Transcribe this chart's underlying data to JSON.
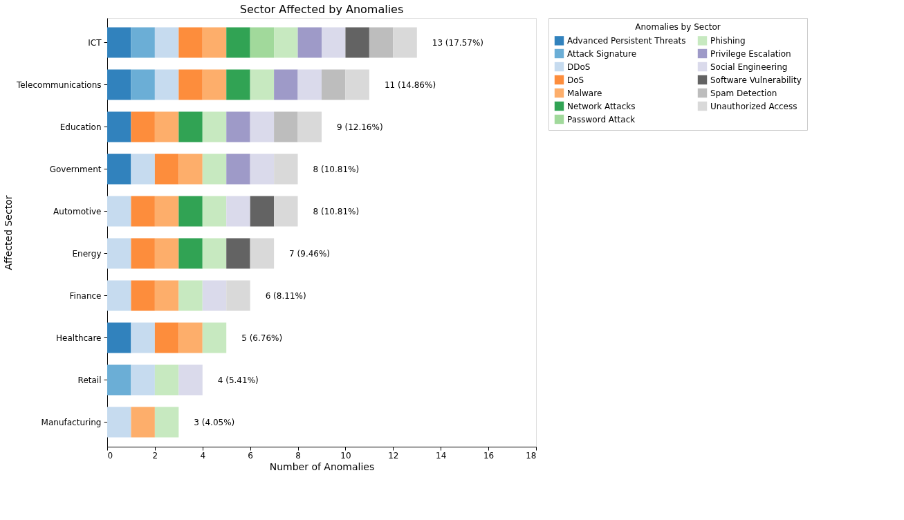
{
  "chart_data": {
    "type": "bar",
    "orientation": "horizontal",
    "stacked": true,
    "title": "Sector Affected by Anomalies",
    "xlabel": "Number of Anomalies",
    "ylabel": "Affected Sector",
    "legend_title": "Anomalies by Sector",
    "legend": "top right",
    "grid": false,
    "categories": [
      "ICT",
      "Telecommunications",
      "Education",
      "Government",
      "Automotive",
      "Energy",
      "Finance",
      "Healthcare",
      "Retail",
      "Manufacturing"
    ],
    "xlim": [
      0,
      18
    ],
    "xticks": [
      0,
      2,
      4,
      6,
      8,
      10,
      12,
      14,
      16,
      18
    ],
    "series": [
      {
        "name": "Advanced Persistent Threats",
        "color": "#3182bd",
        "values": [
          1,
          1,
          1,
          1,
          0,
          0,
          0,
          1,
          0,
          0
        ]
      },
      {
        "name": "Attack Signature",
        "color": "#6baed6",
        "values": [
          1,
          1,
          0,
          0,
          0,
          0,
          0,
          0,
          1,
          0
        ]
      },
      {
        "name": "DDoS",
        "color": "#c6dbef",
        "values": [
          1,
          1,
          0,
          1,
          1,
          1,
          1,
          1,
          1,
          1
        ]
      },
      {
        "name": "DoS",
        "color": "#fd8d3c",
        "values": [
          1,
          1,
          1,
          1,
          1,
          1,
          1,
          1,
          0,
          0
        ]
      },
      {
        "name": "Malware",
        "color": "#fdae6b",
        "values": [
          1,
          1,
          1,
          1,
          1,
          1,
          1,
          1,
          0,
          1
        ]
      },
      {
        "name": "Network Attacks",
        "color": "#31a354",
        "values": [
          1,
          1,
          1,
          0,
          1,
          1,
          0,
          0,
          0,
          0
        ]
      },
      {
        "name": "Password Attack",
        "color": "#a1d99b",
        "values": [
          1,
          0,
          0,
          0,
          0,
          0,
          0,
          0,
          0,
          0
        ]
      },
      {
        "name": "Phishing",
        "color": "#c7e9c0",
        "values": [
          1,
          1,
          1,
          1,
          1,
          1,
          1,
          1,
          1,
          1
        ]
      },
      {
        "name": "Privilege Escalation",
        "color": "#9e9ac8",
        "values": [
          1,
          1,
          1,
          1,
          0,
          0,
          0,
          0,
          0,
          0
        ]
      },
      {
        "name": "Social Engineering",
        "color": "#dadaeb",
        "values": [
          1,
          1,
          1,
          1,
          1,
          0,
          1,
          0,
          1,
          0
        ]
      },
      {
        "name": "Software Vulnerability",
        "color": "#636363",
        "values": [
          1,
          0,
          0,
          0,
          1,
          1,
          0,
          0,
          0,
          0
        ]
      },
      {
        "name": "Spam Detection",
        "color": "#bdbdbd",
        "values": [
          1,
          1,
          1,
          0,
          0,
          0,
          0,
          0,
          0,
          0
        ]
      },
      {
        "name": "Unauthorized Access",
        "color": "#d9d9d9",
        "values": [
          1,
          1,
          1,
          1,
          1,
          1,
          1,
          0,
          0,
          0
        ]
      }
    ],
    "totals": [
      "13 (17.57%)",
      "11 (14.86%)",
      "9 (12.16%)",
      "8 (10.81%)",
      "8 (10.81%)",
      "7 (9.46%)",
      "6 (8.11%)",
      "5 (6.76%)",
      "4 (5.41%)",
      "3 (4.05%)"
    ]
  }
}
